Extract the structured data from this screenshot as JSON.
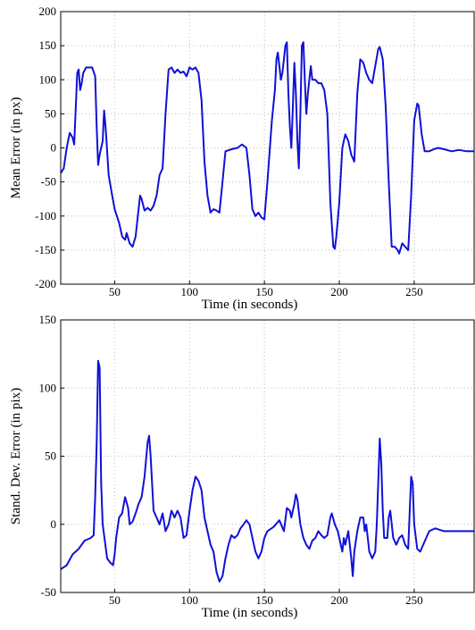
{
  "chart_data": [
    {
      "type": "line",
      "x_label": "Time  (in seconds)",
      "y_label": "Mean Error (in px)",
      "xlim": [
        14,
        290
      ],
      "ylim": [
        -200,
        200
      ],
      "xticks": [
        50,
        100,
        150,
        200,
        250
      ],
      "yticks": [
        -200,
        -150,
        -100,
        -50,
        0,
        50,
        100,
        150,
        200
      ],
      "grid": true,
      "series": [
        {
          "color": "#1010d8",
          "x": [
            14,
            16,
            18,
            20,
            22,
            23,
            25,
            26,
            27,
            28,
            29,
            31,
            35,
            37,
            38,
            39,
            40,
            42,
            43,
            44,
            46,
            48,
            50,
            53,
            55,
            57,
            58,
            60,
            62,
            64,
            66,
            67,
            68,
            70,
            72,
            74,
            76,
            78,
            80,
            82,
            84,
            86,
            88,
            90,
            92,
            94,
            96,
            98,
            100,
            102,
            104,
            106,
            108,
            110,
            112,
            114,
            116,
            118,
            120,
            122,
            124,
            128,
            132,
            135,
            138,
            140,
            142,
            144,
            146,
            148,
            150,
            152,
            155,
            157,
            158,
            159,
            160,
            161,
            162,
            164,
            165,
            166,
            167,
            168,
            169,
            170,
            171,
            172,
            173,
            174,
            175,
            176,
            177,
            178,
            179,
            181,
            182,
            184,
            186,
            188,
            190,
            192,
            194,
            196,
            197,
            198,
            200,
            202,
            204,
            206,
            208,
            210,
            212,
            214,
            216,
            218,
            220,
            222,
            224,
            226,
            227,
            229,
            231,
            233,
            235,
            237,
            239,
            240,
            242,
            244,
            246,
            248,
            250,
            252,
            253,
            255,
            257,
            260,
            263,
            266,
            270,
            275,
            280,
            285,
            290
          ],
          "values": [
            -37,
            -30,
            0,
            22,
            15,
            5,
            110,
            115,
            85,
            95,
            110,
            118,
            118,
            105,
            30,
            -25,
            -10,
            10,
            55,
            30,
            -40,
            -65,
            -90,
            -110,
            -130,
            -135,
            -125,
            -140,
            -145,
            -130,
            -90,
            -70,
            -75,
            -92,
            -88,
            -92,
            -85,
            -70,
            -40,
            -30,
            50,
            115,
            118,
            110,
            115,
            110,
            112,
            105,
            118,
            115,
            118,
            110,
            70,
            -20,
            -70,
            -95,
            -90,
            -92,
            -95,
            -50,
            -5,
            -2,
            0,
            5,
            0,
            -40,
            -90,
            -100,
            -95,
            -102,
            -105,
            -50,
            40,
            85,
            130,
            140,
            120,
            100,
            110,
            150,
            155,
            80,
            30,
            0,
            60,
            125,
            80,
            10,
            -30,
            50,
            150,
            155,
            100,
            50,
            80,
            120,
            100,
            100,
            95,
            95,
            85,
            50,
            -80,
            -145,
            -148,
            -130,
            -80,
            0,
            20,
            10,
            -10,
            -20,
            80,
            130,
            125,
            110,
            100,
            95,
            120,
            145,
            148,
            130,
            60,
            -50,
            -145,
            -145,
            -150,
            -155,
            -140,
            -145,
            -150,
            -70,
            40,
            65,
            62,
            20,
            -5,
            -5,
            -2,
            0,
            -2,
            -5,
            -3,
            -5,
            -5
          ]
        }
      ]
    },
    {
      "type": "line",
      "x_label": "Time (in seconds)",
      "y_label": "Stand. Dev. Error (in pix)",
      "xlim": [
        14,
        290
      ],
      "ylim": [
        -50,
        150
      ],
      "xticks": [
        50,
        100,
        150,
        200,
        250
      ],
      "yticks": [
        -50,
        0,
        50,
        100,
        150
      ],
      "grid": true,
      "series": [
        {
          "color": "#1010d8",
          "x": [
            14,
            18,
            22,
            26,
            30,
            34,
            36,
            37,
            38,
            39,
            40,
            41,
            42,
            45,
            47,
            49,
            50,
            51,
            53,
            55,
            57,
            59,
            60,
            62,
            64,
            66,
            68,
            70,
            72,
            73,
            74,
            76,
            78,
            80,
            82,
            84,
            86,
            88,
            90,
            92,
            94,
            96,
            98,
            100,
            102,
            104,
            106,
            108,
            110,
            112,
            114,
            116,
            118,
            120,
            122,
            124,
            126,
            128,
            130,
            132,
            134,
            136,
            138,
            140,
            142,
            144,
            146,
            148,
            150,
            152,
            156,
            160,
            163,
            165,
            167,
            168,
            170,
            171,
            172,
            174,
            176,
            178,
            180,
            182,
            184,
            186,
            188,
            190,
            192,
            194,
            195,
            197,
            199,
            200,
            202,
            203,
            204,
            206,
            208,
            209,
            210,
            212,
            214,
            216,
            217,
            218,
            220,
            222,
            224,
            225,
            226,
            227,
            228,
            229,
            230,
            232,
            233,
            234,
            236,
            238,
            240,
            242,
            244,
            246,
            247,
            248,
            249,
            250,
            252,
            254,
            256,
            258,
            260,
            264,
            270,
            280,
            290
          ],
          "values": [
            -33,
            -30,
            -22,
            -18,
            -12,
            -10,
            -8,
            20,
            60,
            120,
            115,
            30,
            0,
            -25,
            -28,
            -30,
            -22,
            -10,
            5,
            8,
            20,
            12,
            0,
            2,
            8,
            15,
            20,
            35,
            60,
            65,
            50,
            10,
            5,
            0,
            8,
            -5,
            0,
            10,
            5,
            10,
            5,
            -10,
            -8,
            10,
            25,
            35,
            32,
            25,
            5,
            -5,
            -15,
            -20,
            -35,
            -42,
            -38,
            -25,
            -15,
            -8,
            -10,
            -8,
            -3,
            0,
            3,
            0,
            -10,
            -20,
            -25,
            -20,
            -10,
            -5,
            -2,
            3,
            -5,
            12,
            10,
            5,
            15,
            22,
            18,
            0,
            -10,
            -15,
            -18,
            -12,
            -10,
            -5,
            -8,
            -10,
            -8,
            5,
            8,
            0,
            -5,
            -10,
            -20,
            -10,
            -15,
            -5,
            -25,
            -38,
            -20,
            -5,
            5,
            5,
            -5,
            0,
            -20,
            -25,
            -20,
            0,
            30,
            63,
            45,
            10,
            -10,
            -10,
            5,
            10,
            -10,
            -15,
            -10,
            -8,
            -15,
            -18,
            10,
            35,
            30,
            0,
            -18,
            -20,
            -15,
            -10,
            -5,
            -3,
            -5,
            -5,
            -5
          ]
        }
      ]
    }
  ]
}
